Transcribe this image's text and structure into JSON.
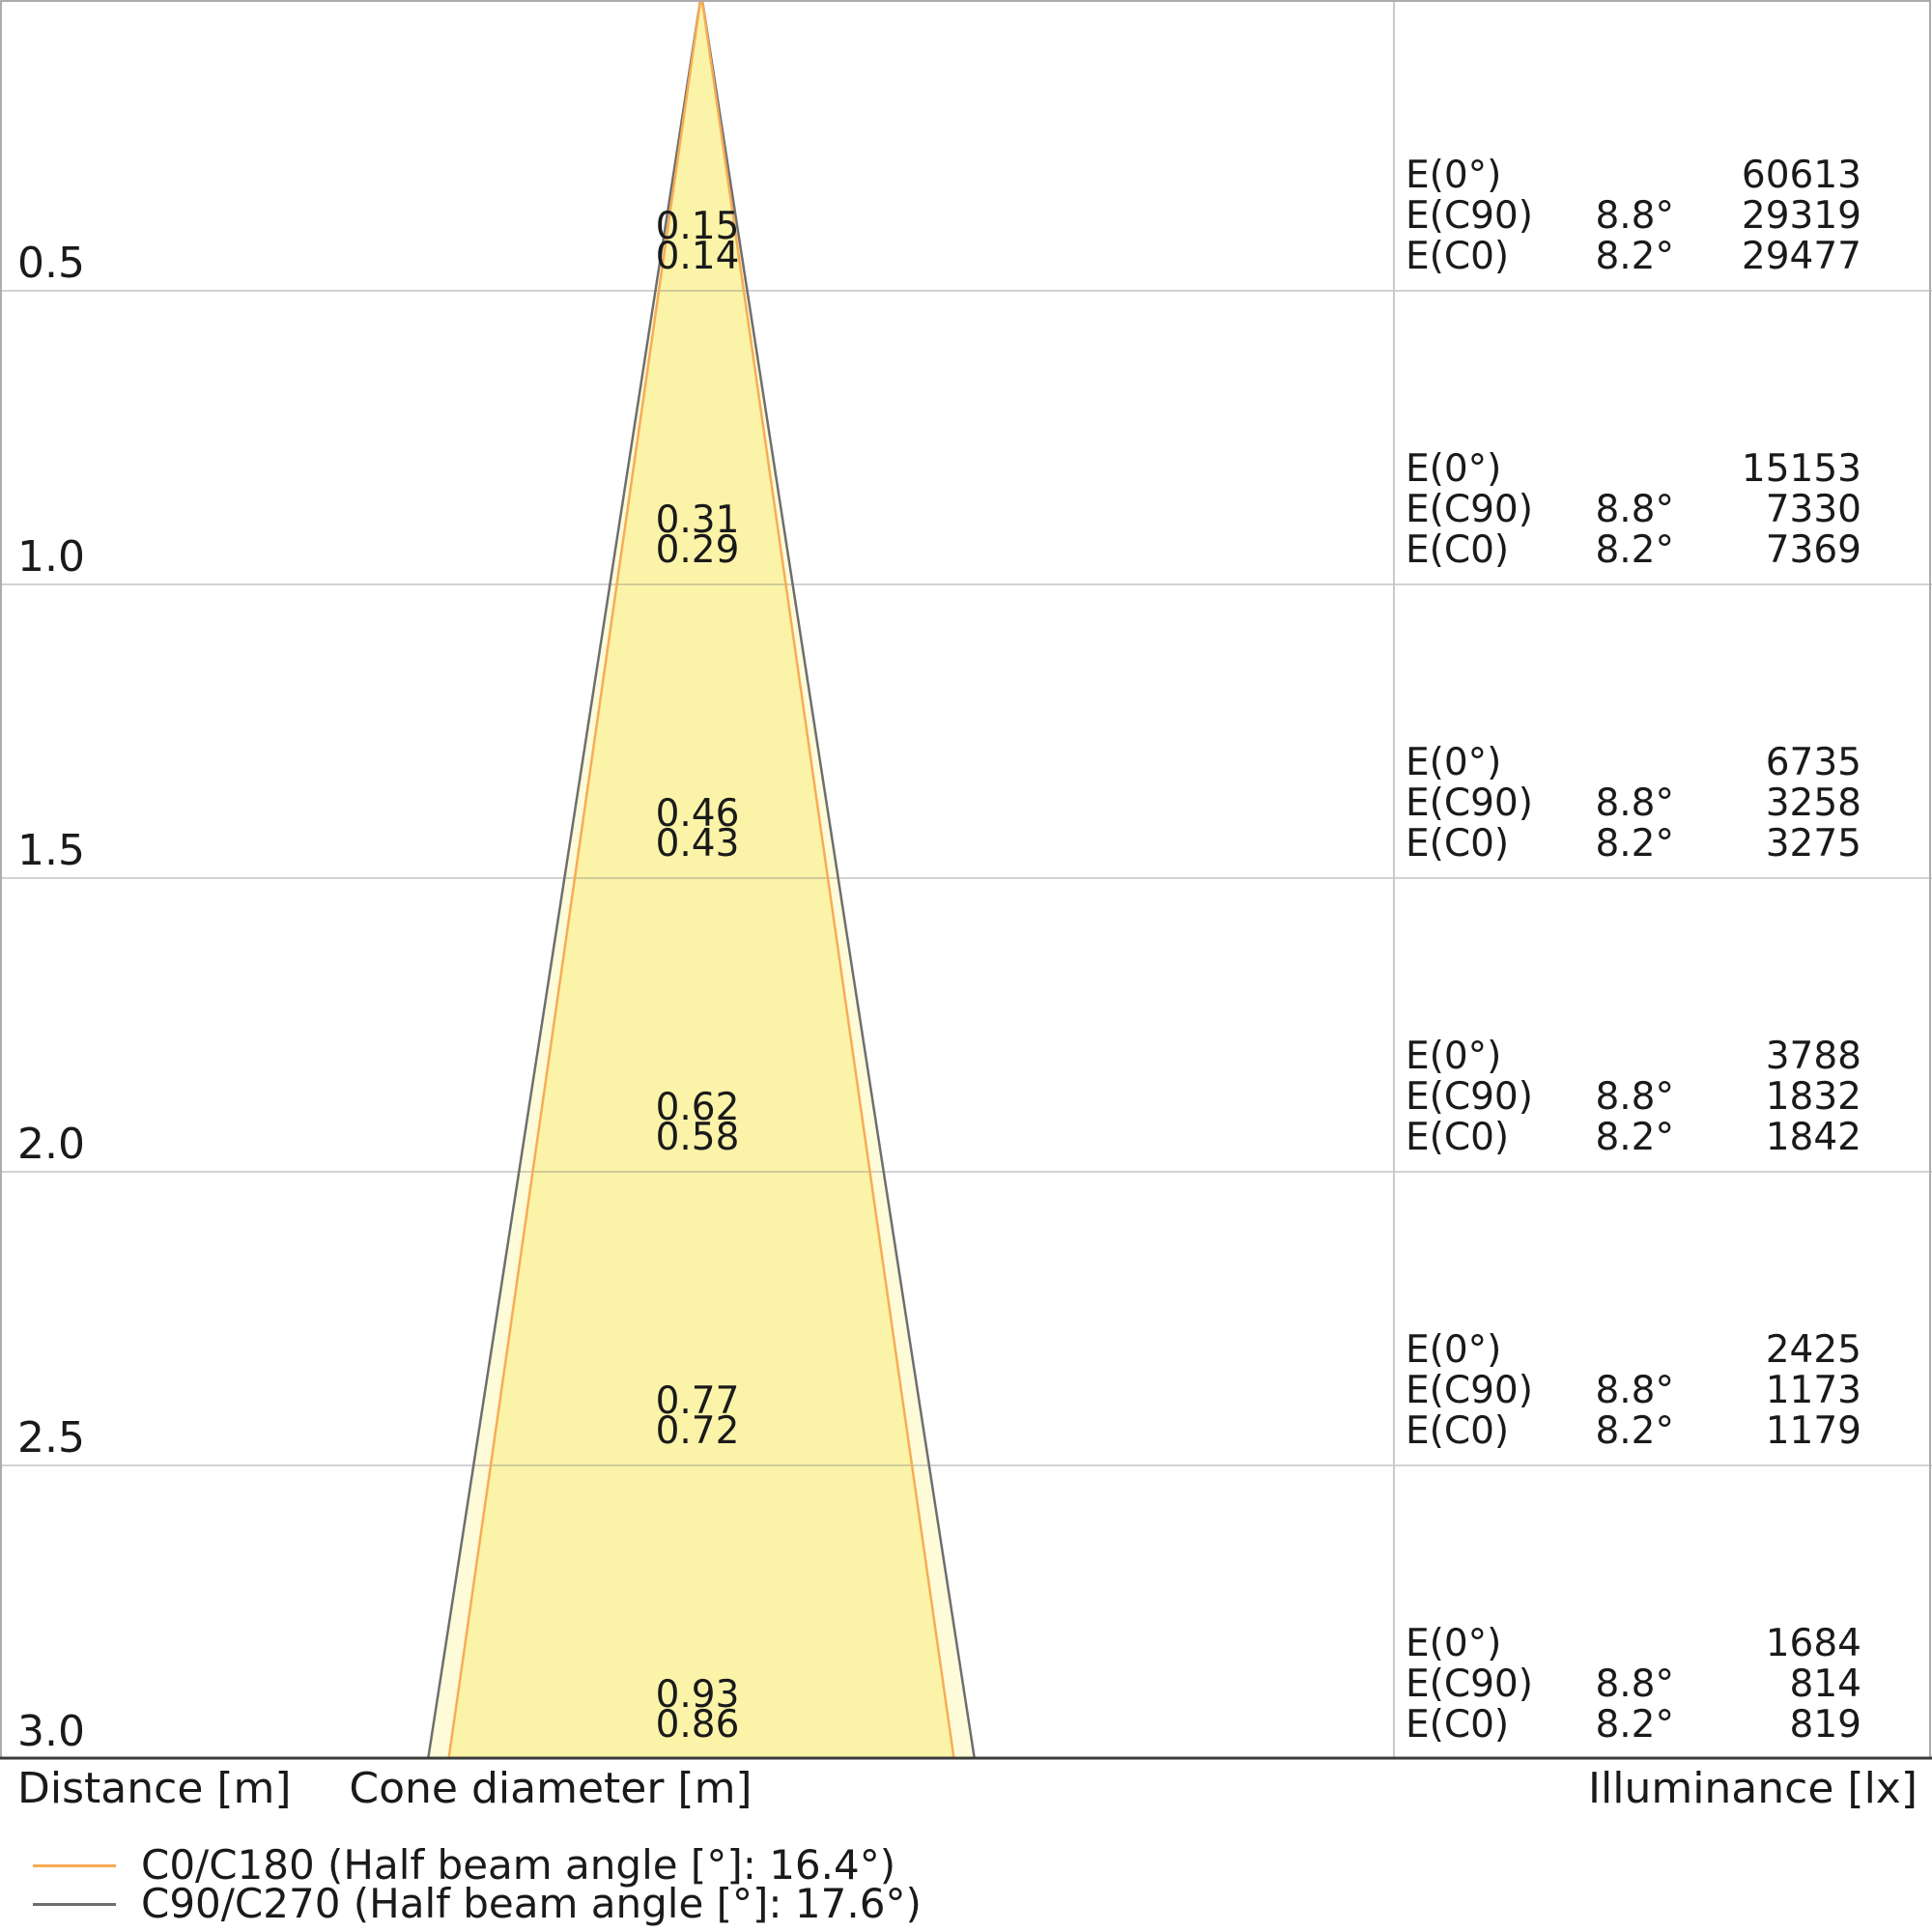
{
  "chart_data": {
    "type": "area",
    "subtype": "light-cone-diagram",
    "columns": {
      "distance": "Distance [m]",
      "cone_diameter": "Cone diameter [m]",
      "illuminance": "Illuminance [lx]"
    },
    "distances_m": [
      "0.5",
      "1.0",
      "1.5",
      "2.0",
      "2.5",
      "3.0"
    ],
    "distance_axis_range_m": [
      0,
      3.0
    ],
    "grid": "horizontal-lines-at-each-0.5m",
    "series": [
      {
        "name": "C90/C270",
        "half_beam_angle_deg": "17.6°",
        "angle_from_axis": "8.8°",
        "cone_diameters_m": [
          0.15,
          0.31,
          0.46,
          0.62,
          0.77,
          0.93
        ],
        "color": "#6E6E6E"
      },
      {
        "name": "C0/C180",
        "half_beam_angle_deg": "16.4°",
        "angle_from_axis": "8.2°",
        "cone_diameters_m": [
          0.14,
          0.29,
          0.43,
          0.58,
          0.72,
          0.86
        ],
        "color": "#F7AC55"
      }
    ],
    "cone_diameter_labels": [
      [
        "0.15",
        "0.14"
      ],
      [
        "0.31",
        "0.29"
      ],
      [
        "0.46",
        "0.43"
      ],
      [
        "0.62",
        "0.58"
      ],
      [
        "0.77",
        "0.72"
      ],
      [
        "0.93",
        "0.86"
      ]
    ],
    "illuminance_rows": [
      [
        {
          "label": "E(0°)",
          "angle": "",
          "value": "60613"
        },
        {
          "label": "E(C90)",
          "angle": "8.8°",
          "value": "29319"
        },
        {
          "label": "E(C0)",
          "angle": "8.2°",
          "value": "29477"
        }
      ],
      [
        {
          "label": "E(0°)",
          "angle": "",
          "value": "15153"
        },
        {
          "label": "E(C90)",
          "angle": "8.8°",
          "value": "7330"
        },
        {
          "label": "E(C0)",
          "angle": "8.2°",
          "value": "7369"
        }
      ],
      [
        {
          "label": "E(0°)",
          "angle": "",
          "value": "6735"
        },
        {
          "label": "E(C90)",
          "angle": "8.8°",
          "value": "3258"
        },
        {
          "label": "E(C0)",
          "angle": "8.2°",
          "value": "3275"
        }
      ],
      [
        {
          "label": "E(0°)",
          "angle": "",
          "value": "3788"
        },
        {
          "label": "E(C90)",
          "angle": "8.8°",
          "value": "1832"
        },
        {
          "label": "E(C0)",
          "angle": "8.2°",
          "value": "1842"
        }
      ],
      [
        {
          "label": "E(0°)",
          "angle": "",
          "value": "2425"
        },
        {
          "label": "E(C90)",
          "angle": "8.8°",
          "value": "1173"
        },
        {
          "label": "E(C0)",
          "angle": "8.2°",
          "value": "1179"
        }
      ],
      [
        {
          "label": "E(0°)",
          "angle": "",
          "value": "1684"
        },
        {
          "label": "E(C90)",
          "angle": "8.8°",
          "value": "814"
        },
        {
          "label": "E(C0)",
          "angle": "8.2°",
          "value": "819"
        }
      ]
    ],
    "legend": [
      {
        "label": "C0/C180 (Half beam angle [°]: 16.4°)",
        "color": "#F7AC55"
      },
      {
        "label": "C90/C270 (Half beam angle [°]: 17.6°)",
        "color": "#6E6E6E"
      }
    ],
    "colors": {
      "cone_fill_outer": "#FEFBD9",
      "cone_fill_inner": "#FBF3A8",
      "gridline": "#C9C9C9",
      "border": "#ACACAC",
      "bottom_axis": "#3C3C3C",
      "text": "#1A1A1A"
    }
  }
}
